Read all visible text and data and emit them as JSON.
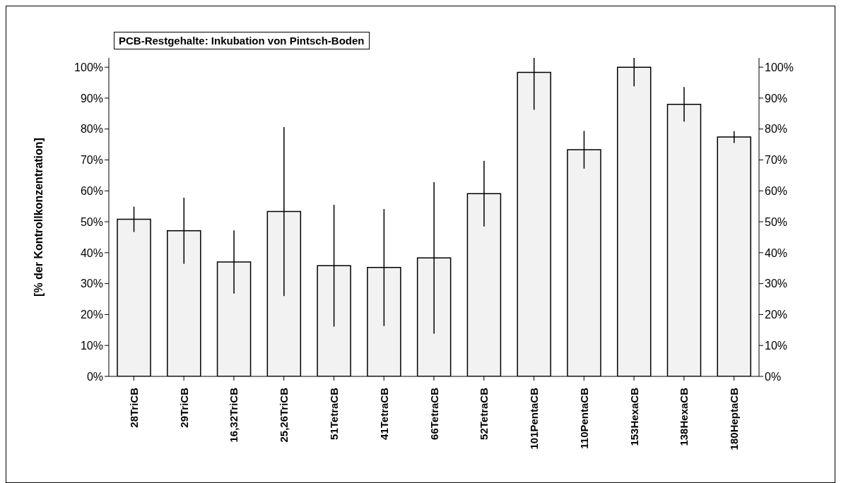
{
  "chart_data": {
    "type": "bar",
    "title": "PCB-Restgehalte: Inkubation von Pintsch-Boden",
    "ylabel": "[% der Kontrollkonzentration]",
    "categories": [
      "28TriCB",
      "29TriCB",
      "16,32TriCB",
      "25,26TriCB",
      "51TetraCB",
      "41TetraCB",
      "66TetraCB",
      "52TetraCB",
      "101PentaCB",
      "110PentaCB",
      "153HexaCB",
      "138HexaCB",
      "180HeptaCB"
    ],
    "values": [
      50.8,
      47.1,
      37.0,
      53.3,
      35.8,
      35.2,
      38.3,
      59.1,
      98.3,
      73.3,
      100,
      88.0,
      77.4
    ],
    "errors": [
      4.1,
      10.7,
      10.2,
      27.3,
      19.7,
      18.9,
      24.5,
      10.6,
      [
        86.2,
        103
      ],
      6.1,
      [
        93.8,
        103
      ],
      5.6,
      1.9
    ],
    "color": "#f2f2f2",
    "ylim": [
      0,
      103
    ],
    "yticks": [
      {
        "value": 0,
        "label": "0%"
      },
      {
        "value": 10,
        "label": "10%"
      },
      {
        "value": 20,
        "label": "20%"
      },
      {
        "value": 30,
        "label": "30%"
      },
      {
        "value": 40,
        "label": "40%"
      },
      {
        "value": 50,
        "label": "50%"
      },
      {
        "value": 60,
        "label": "60%"
      },
      {
        "value": 70,
        "label": "70%"
      },
      {
        "value": 80,
        "label": "80%"
      },
      {
        "value": 90,
        "label": "90%"
      },
      {
        "value": 100,
        "label": "100%"
      }
    ],
    "y2lim": [
      0,
      103
    ],
    "y2ticks": [
      {
        "value": 0,
        "label": "0%"
      },
      {
        "value": 10,
        "label": "10%"
      },
      {
        "value": 20,
        "label": "20%"
      },
      {
        "value": 30,
        "label": "30%"
      },
      {
        "value": 40,
        "label": "40%"
      },
      {
        "value": 50,
        "label": "50%"
      },
      {
        "value": 60,
        "label": "60%"
      },
      {
        "value": 70,
        "label": "70%"
      },
      {
        "value": 80,
        "label": "80%"
      },
      {
        "value": 90,
        "label": "90%"
      },
      {
        "value": 100,
        "label": "100%"
      }
    ],
    "grid": false,
    "legend": false
  }
}
